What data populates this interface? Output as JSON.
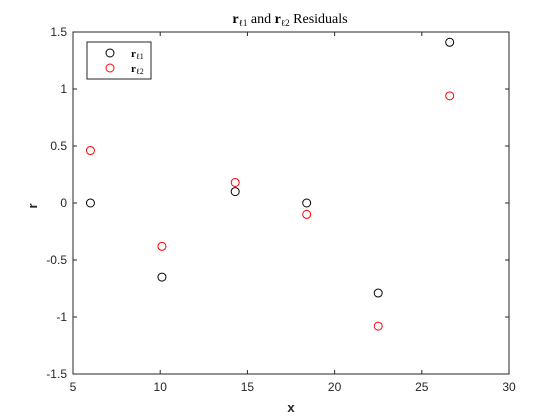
{
  "chart_data": {
    "type": "scatter",
    "title": "r_{ℓ1} and r_{ℓ2} Residuals",
    "title_parts": {
      "r1": "r",
      "sub1": "ℓ1",
      "and": " and ",
      "r2": "r",
      "sub2": "ℓ2",
      "rest": " Residuals"
    },
    "xlabel": "x",
    "ylabel": "r",
    "xlim": [
      5,
      30
    ],
    "ylim": [
      -1.5,
      1.5
    ],
    "xticks": [
      5,
      10,
      15,
      20,
      25,
      30
    ],
    "yticks": [
      -1.5,
      -1,
      -0.5,
      0,
      0.5,
      1,
      1.5
    ],
    "legend_position": "top-left",
    "series": [
      {
        "name": "r_{ℓ1}",
        "name_main": "r",
        "name_sub": "ℓ1",
        "color": "#000000",
        "marker": "circle-open",
        "x": [
          6.0,
          10.1,
          14.3,
          18.4,
          22.5,
          26.6
        ],
        "y": [
          0.0,
          -0.65,
          0.1,
          0.0,
          -0.79,
          1.41
        ]
      },
      {
        "name": "r_{ℓ2}",
        "name_main": "r",
        "name_sub": "ℓ2",
        "color": "#ff0000",
        "marker": "circle-open",
        "x": [
          6.0,
          10.1,
          14.3,
          18.4,
          22.5,
          26.6
        ],
        "y": [
          0.46,
          -0.38,
          0.18,
          -0.1,
          -1.08,
          0.94
        ]
      }
    ]
  }
}
